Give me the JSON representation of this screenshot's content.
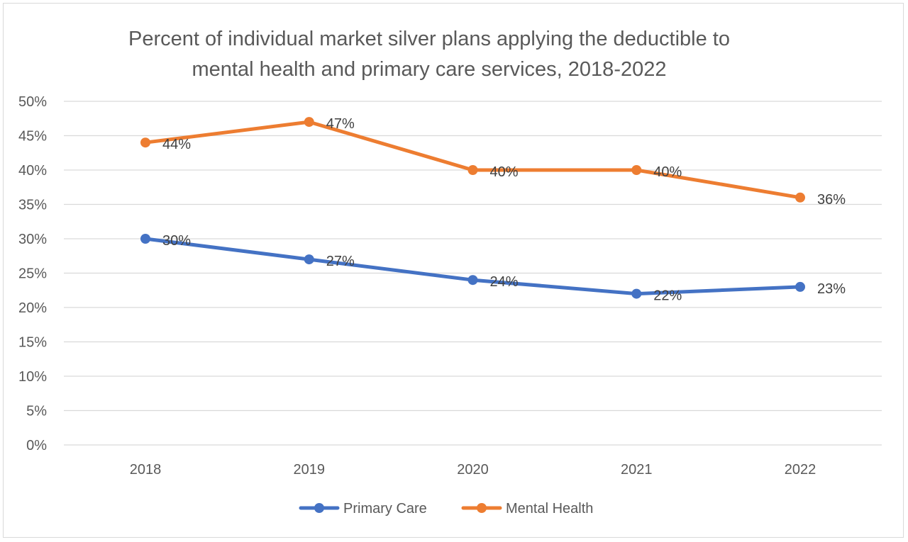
{
  "chart_data": {
    "type": "line",
    "title_line1": "Percent of individual market silver plans applying the deductible to",
    "title_line2": "mental health and primary care services, 2018-2022",
    "categories": [
      "2018",
      "2019",
      "2020",
      "2021",
      "2022"
    ],
    "ylim": [
      0,
      50
    ],
    "y_step": 5,
    "y_tick_labels": [
      "0%",
      "5%",
      "10%",
      "15%",
      "20%",
      "25%",
      "30%",
      "35%",
      "40%",
      "45%",
      "50%"
    ],
    "grid": true,
    "legend_position": "bottom",
    "series": [
      {
        "name": "Primary Care",
        "color": "#4472c4",
        "values": [
          30,
          27,
          24,
          22,
          23
        ],
        "labels": [
          "30%",
          "27%",
          "24%",
          "22%",
          "23%"
        ]
      },
      {
        "name": "Mental Health",
        "color": "#ed7d31",
        "values": [
          44,
          47,
          40,
          40,
          36
        ],
        "labels": [
          "44%",
          "47%",
          "40%",
          "40%",
          "36%"
        ]
      }
    ]
  }
}
